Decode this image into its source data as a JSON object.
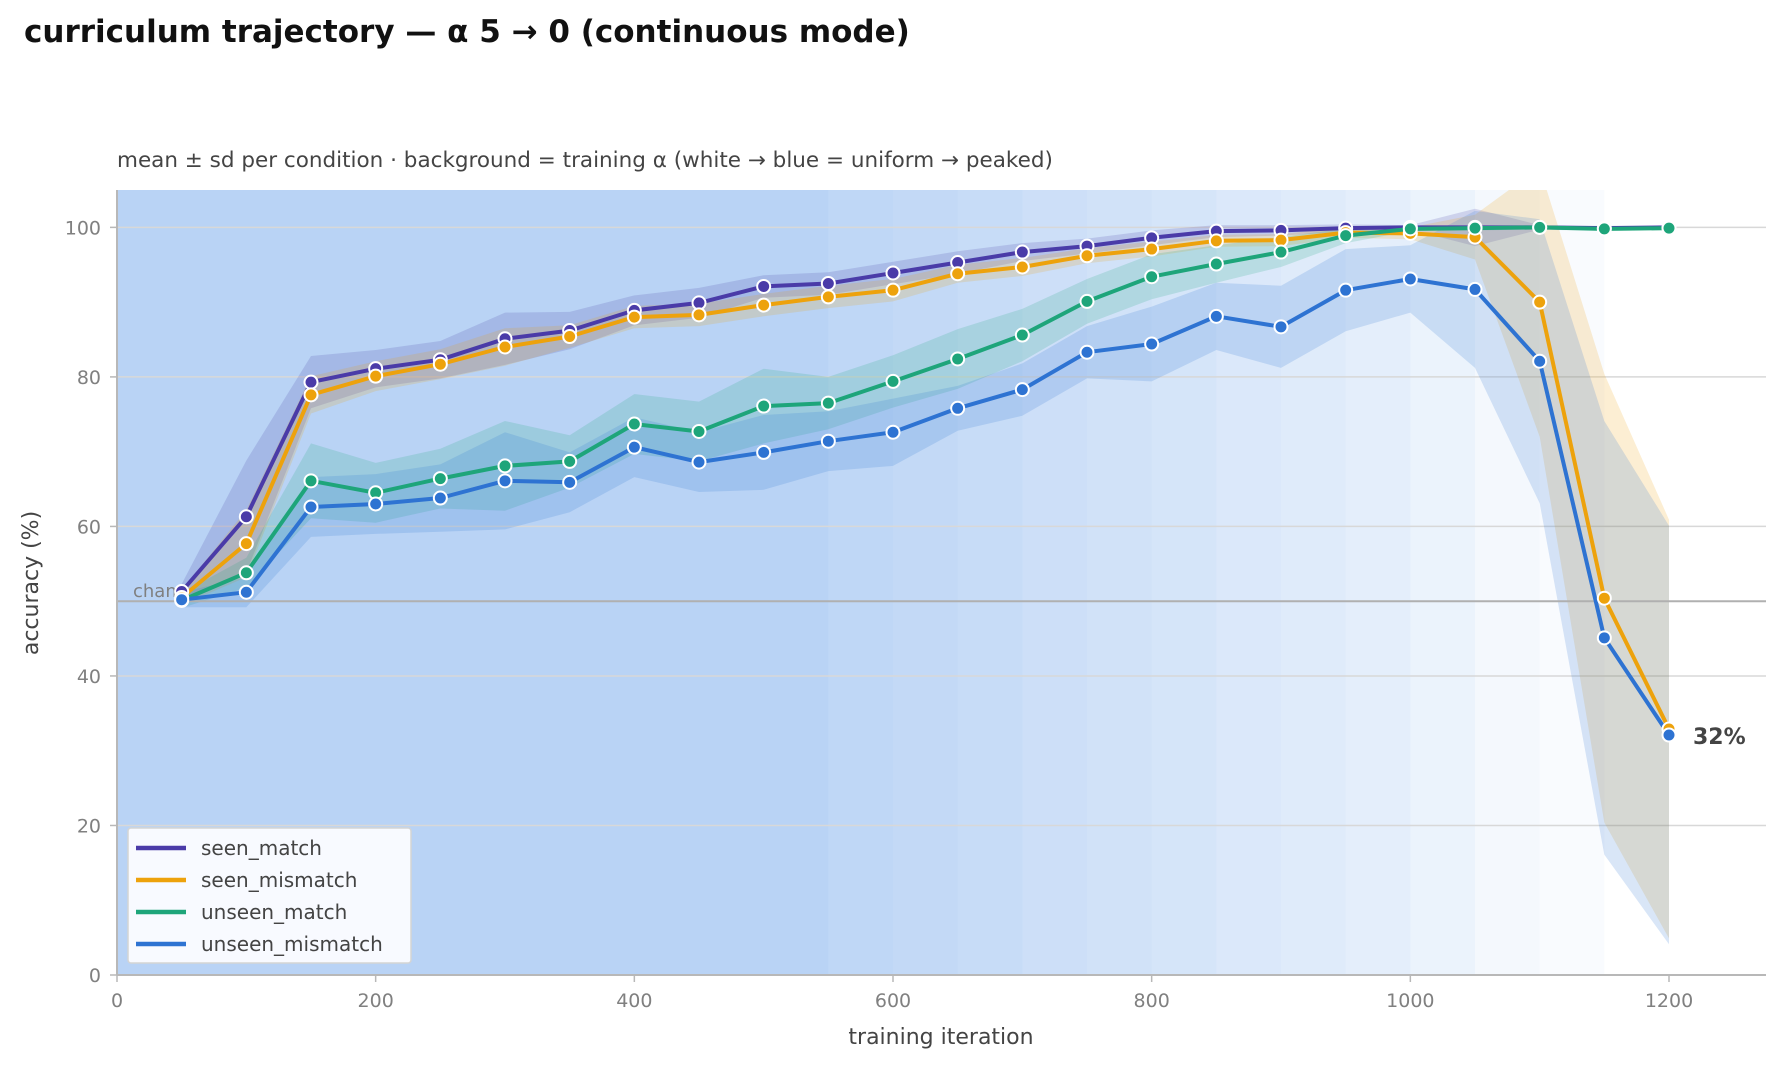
{
  "chart_data": {
    "type": "line",
    "title": "curriculum trajectory — α 5 → 0 (continuous mode)",
    "subtitle": "mean ± sd per condition · background = training α (white → blue = uniform → peaked)",
    "xlabel": "training iteration",
    "ylabel": "accuracy (%)",
    "xlim": [
      0,
      1275
    ],
    "ylim": [
      0,
      105
    ],
    "x_ticks": [
      0,
      200,
      400,
      600,
      800,
      1000,
      1200
    ],
    "y_ticks": [
      0,
      20,
      40,
      60,
      80,
      100
    ],
    "grid": "horizontal",
    "legend_position": "lower-left",
    "chance": {
      "value": 50,
      "label": "chance"
    },
    "end_annotation": {
      "x": 1200,
      "y": 32,
      "label": "32%"
    },
    "background_alpha": {
      "x_edges": [
        0,
        550,
        600,
        650,
        700,
        750,
        800,
        850,
        900,
        950,
        1000,
        1050,
        1100,
        1150,
        1275
      ],
      "alpha_values": [
        5.0,
        4.6,
        4.3,
        4.0,
        3.6,
        3.3,
        3.0,
        2.6,
        2.3,
        1.9,
        1.4,
        0.8,
        0.4,
        0.0
      ]
    },
    "x": [
      50,
      100,
      150,
      200,
      250,
      300,
      350,
      400,
      450,
      500,
      550,
      600,
      650,
      700,
      750,
      800,
      850,
      900,
      950,
      1000,
      1050,
      1100,
      1150,
      1200
    ],
    "series": [
      {
        "name": "seen_match",
        "color": "#4a3ba8",
        "values": [
          51.3,
          61.3,
          79.3,
          81.1,
          82.3,
          85.1,
          86.2,
          88.9,
          89.9,
          92.1,
          92.5,
          93.9,
          95.3,
          96.7,
          97.5,
          98.6,
          99.5,
          99.6,
          99.9,
          100.0,
          100.0,
          100.0,
          99.9,
          100.0
        ],
        "sd": [
          1.0,
          7.5,
          3.5,
          2.5,
          2.5,
          3.5,
          2.5,
          2.0,
          2.0,
          1.5,
          1.5,
          1.5,
          1.5,
          1.2,
          1.0,
          1.0,
          0.8,
          0.7,
          0.5,
          0.3,
          2.5,
          0.3,
          0.3,
          0.3
        ]
      },
      {
        "name": "seen_mismatch",
        "color": "#eda20c",
        "values": [
          50.5,
          57.7,
          77.6,
          80.1,
          81.7,
          84.0,
          85.4,
          88.0,
          88.3,
          89.6,
          90.7,
          91.6,
          93.8,
          94.7,
          96.2,
          97.1,
          98.2,
          98.3,
          99.3,
          99.2,
          98.7,
          90.0,
          50.4,
          32.9
        ],
        "sd": [
          1.0,
          4.5,
          2.5,
          2.0,
          2.0,
          2.5,
          1.5,
          1.5,
          1.5,
          1.5,
          1.5,
          1.5,
          1.2,
          1.2,
          1.0,
          1.0,
          0.8,
          0.8,
          0.7,
          0.8,
          3.0,
          18.0,
          30.0,
          28.0
        ]
      },
      {
        "name": "unseen_match",
        "color": "#1ea57a",
        "values": [
          50.1,
          53.8,
          66.1,
          64.5,
          66.4,
          68.1,
          68.7,
          73.7,
          72.7,
          76.1,
          76.5,
          79.4,
          82.4,
          85.6,
          90.1,
          93.4,
          95.1,
          96.7,
          98.9,
          99.8,
          99.9,
          100.0,
          99.8,
          99.9
        ],
        "sd": [
          1.0,
          2.0,
          5.0,
          4.0,
          4.0,
          6.0,
          3.5,
          4.0,
          4.0,
          5.0,
          3.5,
          3.5,
          4.0,
          3.5,
          3.0,
          3.0,
          2.5,
          2.0,
          1.0,
          0.3,
          0.3,
          0.3,
          0.3,
          0.3
        ]
      },
      {
        "name": "unseen_mismatch",
        "color": "#2e73d2",
        "values": [
          50.2,
          51.2,
          62.6,
          63.0,
          63.8,
          66.1,
          65.9,
          70.6,
          68.6,
          69.9,
          71.4,
          72.6,
          75.8,
          78.3,
          83.3,
          84.4,
          88.1,
          86.7,
          91.6,
          93.1,
          91.7,
          82.1,
          45.1,
          32.1
        ],
        "sd": [
          1.0,
          2.0,
          4.0,
          4.0,
          4.5,
          6.5,
          4.0,
          4.0,
          4.0,
          5.0,
          4.0,
          4.5,
          3.0,
          3.5,
          3.5,
          5.0,
          4.5,
          5.5,
          5.5,
          4.5,
          10.5,
          19.0,
          29.0,
          28.0
        ]
      }
    ]
  }
}
